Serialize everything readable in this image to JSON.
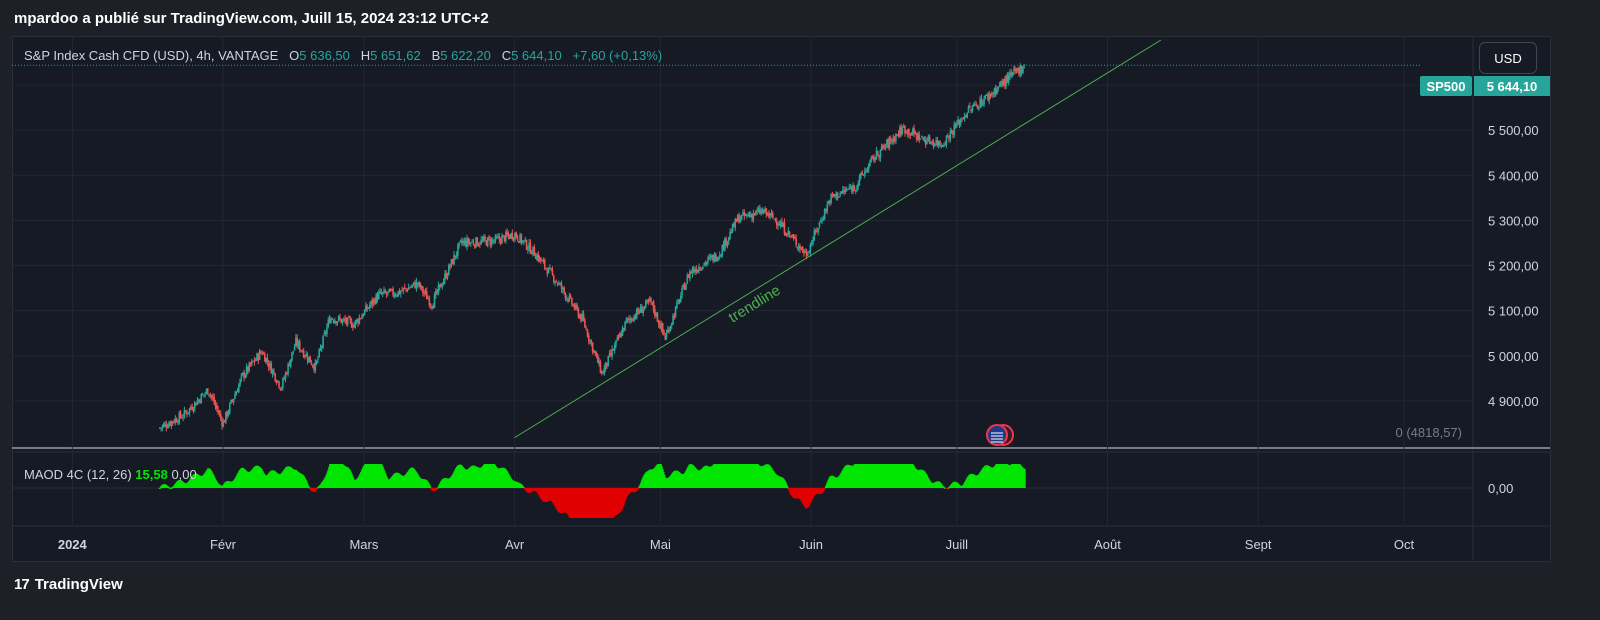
{
  "caption": "mpardoo a publié sur TradingView.com, Juill 15, 2024 23:12 UTC+2",
  "legend": {
    "symbol": "S&P Index Cash CFD (USD), 4h, VANTAGE",
    "o_label": "O",
    "o_value": "5 636,50",
    "h_label": "H",
    "h_value": "5 651,62",
    "l_label": "B",
    "l_value": "5 622,20",
    "c_label": "C",
    "c_value": "5 644,10",
    "change": "+7,60 (+0,13%)"
  },
  "currency_button": "USD",
  "symbol_badge": "SP500",
  "last_price": "5 644,10",
  "baseline_label": "0 (4818,57)",
  "trendline_label": "trendline",
  "indicator": {
    "name": "MAOD 4C (12, 26)",
    "value1": "15,58",
    "value2": "0,00",
    "zero_label": "0,00"
  },
  "footer": {
    "logo_text": "TradingView",
    "logo_mark": "17"
  },
  "colors": {
    "up": "#26a69a",
    "down": "#ef5350",
    "trend": "#4caf50",
    "osc_pos": "#00e600",
    "osc_neg": "#e00000",
    "bg": "#161a25"
  },
  "chart_data": {
    "type": "candlestick",
    "title": "S&P Index Cash CFD (USD), 4h, VANTAGE",
    "y_ticks": [
      4900,
      5000,
      5100,
      5200,
      5300,
      5400,
      5500,
      5600
    ],
    "y_tick_labels": [
      "4 900,00",
      "5 000,00",
      "5 100,00",
      "5 200,00",
      "5 300,00",
      "5 400,00",
      "5 500,00",
      "5 600,00"
    ],
    "x_labels": [
      "2024",
      "Févr",
      "Mars",
      "Avr",
      "Mai",
      "Juin",
      "Juill",
      "Août",
      "Sept",
      "Oct"
    ],
    "x_label_dates": [
      "2024-01-01",
      "2024-02-01",
      "2024-03-01",
      "2024-04-01",
      "2024-05-01",
      "2024-06-01",
      "2024-07-01",
      "2024-08-01",
      "2024-09-01",
      "2024-10-01"
    ],
    "x_range": [
      "2023-12-20",
      "2024-10-15"
    ],
    "y_range": [
      4800,
      5700
    ],
    "close_path": [
      [
        "2024-01-19",
        4840
      ],
      [
        "2024-01-24",
        4870
      ],
      [
        "2024-01-29",
        4925
      ],
      [
        "2024-02-01",
        4850
      ],
      [
        "2024-02-05",
        4955
      ],
      [
        "2024-02-09",
        5010
      ],
      [
        "2024-02-13",
        4930
      ],
      [
        "2024-02-16",
        5030
      ],
      [
        "2024-02-20",
        4975
      ],
      [
        "2024-02-23",
        5085
      ],
      [
        "2024-02-28",
        5070
      ],
      [
        "2024-03-04",
        5135
      ],
      [
        "2024-03-08",
        5140
      ],
      [
        "2024-03-12",
        5160
      ],
      [
        "2024-03-15",
        5115
      ],
      [
        "2024-03-21",
        5250
      ],
      [
        "2024-03-28",
        5255
      ],
      [
        "2024-04-01",
        5270
      ],
      [
        "2024-04-05",
        5230
      ],
      [
        "2024-04-10",
        5160
      ],
      [
        "2024-04-15",
        5080
      ],
      [
        "2024-04-19",
        4960
      ],
      [
        "2024-04-24",
        5075
      ],
      [
        "2024-04-29",
        5120
      ],
      [
        "2024-05-02",
        5040
      ],
      [
        "2024-05-07",
        5185
      ],
      [
        "2024-05-13",
        5225
      ],
      [
        "2024-05-17",
        5305
      ],
      [
        "2024-05-22",
        5320
      ],
      [
        "2024-05-25",
        5300
      ],
      [
        "2024-05-31",
        5225
      ],
      [
        "2024-06-05",
        5350
      ],
      [
        "2024-06-10",
        5375
      ],
      [
        "2024-06-14",
        5440
      ],
      [
        "2024-06-20",
        5505
      ],
      [
        "2024-06-24",
        5480
      ],
      [
        "2024-06-28",
        5470
      ],
      [
        "2024-07-03",
        5540
      ],
      [
        "2024-07-08",
        5580
      ],
      [
        "2024-07-11",
        5610
      ],
      [
        "2024-07-15",
        5644.1
      ]
    ],
    "last_close": 5644.1,
    "trendline": {
      "from": [
        "2024-04-01",
        4818.57
      ],
      "to": [
        "2024-08-12",
        5700
      ]
    }
  }
}
